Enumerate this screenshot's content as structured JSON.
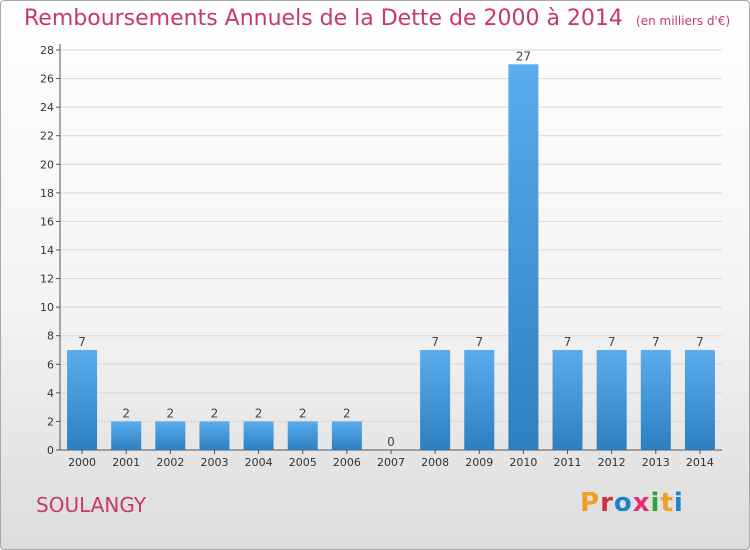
{
  "header": {
    "title": "Remboursements Annuels de la Dette de 2000 à 2014",
    "unit": "(en milliers d'€)"
  },
  "footer": {
    "commune": "SOULANGY",
    "logo_text": "Proxiti",
    "logo_colors": [
      "#f0a020",
      "#d03040",
      "#2080d0",
      "#e03070",
      "#30a040",
      "#f0a020",
      "#2080d0"
    ]
  },
  "colors": {
    "bar_light": "#5aacec",
    "bar_dark": "#2d7fbf",
    "title": "#c8386a",
    "grid": "#d8d8d8"
  },
  "chart_data": {
    "type": "bar",
    "title": "Remboursements Annuels de la Dette de 2000 à 2014",
    "subtitle": "(en milliers d'€)",
    "xlabel": "",
    "ylabel": "",
    "categories": [
      "2000",
      "2001",
      "2002",
      "2003",
      "2004",
      "2005",
      "2006",
      "2007",
      "2008",
      "2009",
      "2010",
      "2011",
      "2012",
      "2013",
      "2014"
    ],
    "values": [
      7,
      2,
      2,
      2,
      2,
      2,
      2,
      0,
      7,
      7,
      27,
      7,
      7,
      7,
      7
    ],
    "data_labels": [
      "7",
      "2",
      "2",
      "2",
      "2",
      "2",
      "2",
      "0",
      "7",
      "7",
      "27",
      "7",
      "7",
      "7",
      "7"
    ],
    "ylim": [
      0,
      28
    ],
    "yticks": [
      "0",
      "2",
      "4",
      "6",
      "8",
      "10",
      "12",
      "14",
      "16",
      "18",
      "20",
      "22",
      "24",
      "26",
      "28"
    ],
    "grid": true,
    "legend": "none"
  }
}
